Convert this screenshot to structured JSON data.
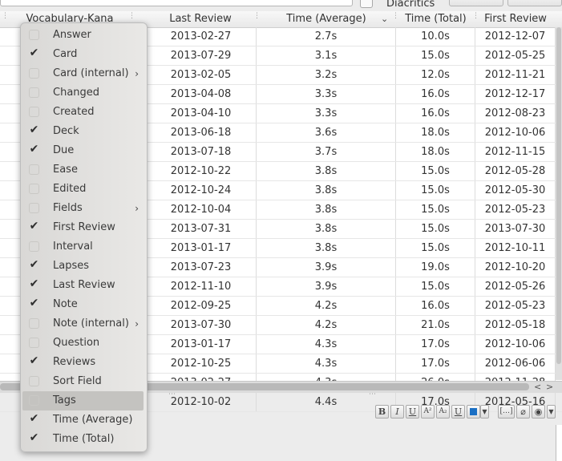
{
  "top": {
    "diacritics_label": "Diacritics"
  },
  "table": {
    "headers": {
      "vocab": "Vocabulary-Kana",
      "last_review": "Last Review",
      "time_avg": "Time (Average)",
      "time_total": "Time (Total)",
      "first_review": "First Review"
    },
    "rows": [
      [
        "2013-02-27",
        "2.7s",
        "10.0s",
        "2012-12-07"
      ],
      [
        "2013-07-29",
        "3.1s",
        "15.0s",
        "2012-05-25"
      ],
      [
        "2013-02-05",
        "3.2s",
        "12.0s",
        "2012-11-21"
      ],
      [
        "2013-04-08",
        "3.3s",
        "16.0s",
        "2012-12-17"
      ],
      [
        "2013-04-10",
        "3.3s",
        "16.0s",
        "2012-08-23"
      ],
      [
        "2013-06-18",
        "3.6s",
        "18.0s",
        "2012-10-06"
      ],
      [
        "2013-07-18",
        "3.7s",
        "18.0s",
        "2012-11-15"
      ],
      [
        "2012-10-22",
        "3.8s",
        "15.0s",
        "2012-05-28"
      ],
      [
        "2012-10-24",
        "3.8s",
        "15.0s",
        "2012-05-30"
      ],
      [
        "2012-10-04",
        "3.8s",
        "15.0s",
        "2012-05-23"
      ],
      [
        "2013-07-31",
        "3.8s",
        "15.0s",
        "2013-07-30"
      ],
      [
        "2013-01-17",
        "3.8s",
        "15.0s",
        "2012-10-11"
      ],
      [
        "2013-07-23",
        "3.9s",
        "19.0s",
        "2012-10-20"
      ],
      [
        "2012-11-10",
        "3.9s",
        "15.0s",
        "2012-05-26"
      ],
      [
        "2012-09-25",
        "4.2s",
        "16.0s",
        "2012-05-23"
      ],
      [
        "2013-07-30",
        "4.2s",
        "21.0s",
        "2012-05-18"
      ],
      [
        "2013-01-17",
        "4.3s",
        "17.0s",
        "2012-10-06"
      ],
      [
        "2012-10-25",
        "4.3s",
        "17.0s",
        "2012-06-06"
      ],
      [
        "2013-02-27",
        "4.3s",
        "26.0s",
        "2012-11-28"
      ],
      [
        "2012-10-02",
        "4.4s",
        "17.0s",
        "2012-05-16"
      ]
    ]
  },
  "menu": {
    "items": [
      {
        "label": "Answer",
        "checked": false,
        "submenu": false
      },
      {
        "label": "Card",
        "checked": true,
        "submenu": false
      },
      {
        "label": "Card (internal)",
        "checked": false,
        "submenu": true
      },
      {
        "label": "Changed",
        "checked": false,
        "submenu": false
      },
      {
        "label": "Created",
        "checked": false,
        "submenu": false
      },
      {
        "label": "Deck",
        "checked": true,
        "submenu": false
      },
      {
        "label": "Due",
        "checked": true,
        "submenu": false
      },
      {
        "label": "Ease",
        "checked": false,
        "submenu": false
      },
      {
        "label": "Edited",
        "checked": false,
        "submenu": false
      },
      {
        "label": "Fields",
        "checked": false,
        "submenu": true
      },
      {
        "label": "First Review",
        "checked": true,
        "submenu": false
      },
      {
        "label": "Interval",
        "checked": false,
        "submenu": false
      },
      {
        "label": "Lapses",
        "checked": true,
        "submenu": false
      },
      {
        "label": "Last Review",
        "checked": true,
        "submenu": false
      },
      {
        "label": "Note",
        "checked": true,
        "submenu": false
      },
      {
        "label": "Note (internal)",
        "checked": false,
        "submenu": true
      },
      {
        "label": "Question",
        "checked": false,
        "submenu": false
      },
      {
        "label": "Reviews",
        "checked": true,
        "submenu": false
      },
      {
        "label": "Sort Field",
        "checked": false,
        "submenu": false
      },
      {
        "label": "Tags",
        "checked": false,
        "submenu": false,
        "highlighted": true
      },
      {
        "label": "Time (Average)",
        "checked": true,
        "submenu": false
      },
      {
        "label": "Time (Total)",
        "checked": true,
        "submenu": false
      }
    ]
  },
  "editor_toolbar": {
    "bold": "B",
    "italic": "I",
    "underline": "U",
    "superscript": "A²",
    "subscript": "A₂",
    "clear_format": "U"
  },
  "colors": {
    "text_color_swatch": "#1a6fc4"
  }
}
